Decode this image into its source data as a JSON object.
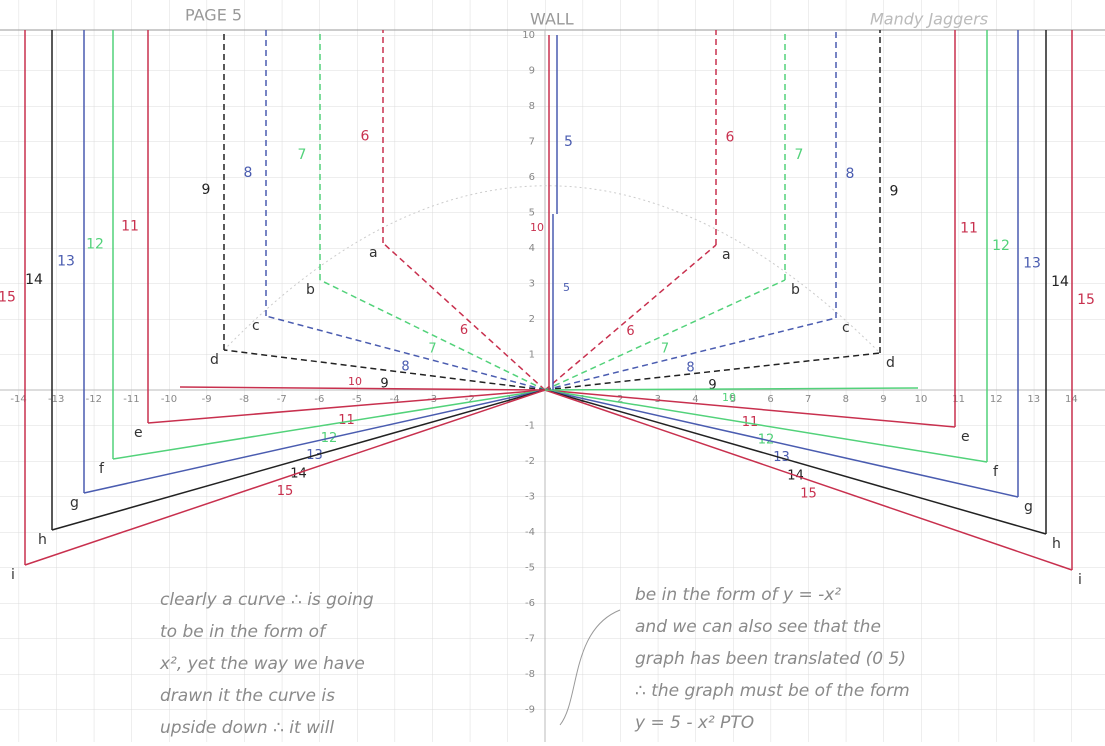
{
  "header": {
    "page": "PAGE 5",
    "wall": "WALL",
    "author": "Mandy Jaggers"
  },
  "x_axis": {
    "labels": [
      -14,
      -13,
      -12,
      -11,
      -10,
      -9,
      -8,
      -7,
      -6,
      -5,
      -4,
      -3,
      -2,
      -1,
      1,
      2,
      3,
      4,
      5,
      6,
      7,
      8,
      9,
      10,
      11,
      12,
      13,
      14
    ]
  },
  "y_axis": {
    "labels": [
      -9,
      -8,
      -7,
      -6,
      -5,
      -4,
      -3,
      -2,
      -1,
      1,
      2,
      3,
      4,
      5,
      6,
      7,
      8,
      9,
      10
    ]
  },
  "segments": [
    {
      "point": "a",
      "length": 6,
      "color": "#c8304e",
      "dashed": true
    },
    {
      "point": "b",
      "length": 7,
      "color": "#52d27a",
      "dashed": true
    },
    {
      "point": "c",
      "length": 8,
      "color": "#4a5cb0",
      "dashed": true
    },
    {
      "point": "d",
      "length": 9,
      "color": "#222222",
      "dashed": true
    },
    {
      "point": "e",
      "length": 11,
      "color": "#c8304e",
      "dashed": false
    },
    {
      "point": "f",
      "length": 12,
      "color": "#52d27a",
      "dashed": false
    },
    {
      "point": "g",
      "length": 13,
      "color": "#4a5cb0",
      "dashed": false
    },
    {
      "point": "h",
      "length": 14,
      "color": "#222222",
      "dashed": false
    },
    {
      "point": "i",
      "length": 15,
      "color": "#c8304e",
      "dashed": false
    }
  ],
  "axis_segments": {
    "horizontal": 10,
    "vertical_short": 5,
    "vertical_long": 10
  },
  "notes": {
    "left": [
      "clearly a curve ∴ is going",
      "to be in the form of",
      "x², yet the way we have",
      "drawn it the curve is",
      "upside down ∴ it will"
    ],
    "right": [
      "be in the form of y = -x²",
      "and we can also see that the",
      "graph has been translated (0 5)",
      "∴ the graph must be of the form",
      "y = 5 - x²   PTO"
    ]
  }
}
